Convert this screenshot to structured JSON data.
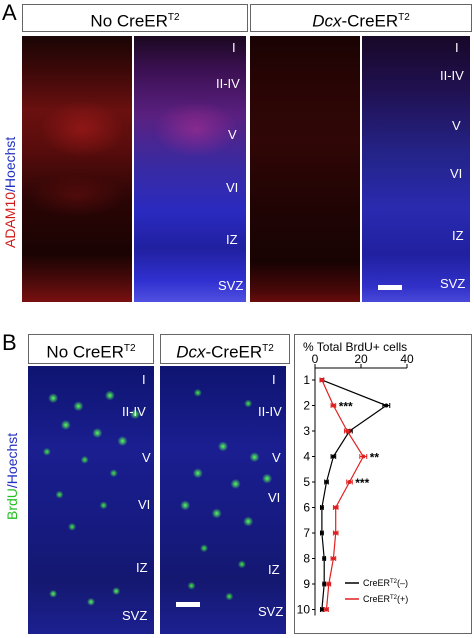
{
  "panel_a": {
    "letter": "A",
    "headers": [
      {
        "prefix": "No CreER",
        "italic": "",
        "sup": "T2"
      },
      {
        "prefix": "",
        "italic": "Dcx",
        "rest": "-CreER",
        "sup": "T2"
      }
    ],
    "side_label_red": "ADAM10",
    "side_label_sep": "/",
    "side_label_blue": "Hoechst",
    "layers": [
      "I",
      "II-IV",
      "V",
      "VI",
      "IZ",
      "SVZ"
    ]
  },
  "panel_b": {
    "letter": "B",
    "headers": [
      {
        "prefix": "No CreER",
        "sup": "T2"
      },
      {
        "italic": "Dcx",
        "rest": "-CreER",
        "sup": "T2"
      }
    ],
    "side_label_green": "BrdU",
    "side_label_sep": "/",
    "side_label_blue": "Hoechst",
    "layers": [
      "I",
      "II-IV",
      "V",
      "VI",
      "IZ",
      "SVZ"
    ]
  },
  "colors": {
    "red_stain": "#c81e1e",
    "blue_stain": "#2a2ad6",
    "green_stain": "#3ddc3d",
    "series_neg": "#000000",
    "series_pos": "#e02020"
  },
  "chart_data": {
    "type": "line",
    "title": "% Total BrdU+ cells",
    "orientation": "bins on vertical axis, percent on horizontal axis",
    "xlim": [
      0,
      40
    ],
    "xticks": [
      "0",
      "20",
      "40"
    ],
    "bins": [
      "1",
      "2",
      "3",
      "4",
      "5",
      "6",
      "7",
      "8",
      "9",
      "10"
    ],
    "series": [
      {
        "name": "CreER",
        "name_sup": "T2",
        "name_suffix": "(–)",
        "color": "#000000",
        "values": [
          3,
          31,
          15,
          8,
          5,
          3,
          3,
          4,
          4,
          3
        ],
        "errors": [
          0.8,
          1.5,
          1.2,
          1.0,
          0.8,
          0.6,
          0.6,
          0.6,
          0.6,
          0.6
        ]
      },
      {
        "name": "CreER",
        "name_sup": "T2",
        "name_suffix": "(+)",
        "color": "#e02020",
        "values": [
          3,
          8,
          14,
          21,
          15,
          9,
          9,
          8,
          6,
          5
        ],
        "errors": [
          0.8,
          1.0,
          1.2,
          1.5,
          1.2,
          1.0,
          1.0,
          1.0,
          0.8,
          0.8
        ]
      }
    ],
    "annotations": [
      {
        "bin": "2",
        "text": "***"
      },
      {
        "bin": "4",
        "text": "**"
      },
      {
        "bin": "5",
        "text": "***"
      }
    ],
    "legend_position": "bottom-right"
  }
}
